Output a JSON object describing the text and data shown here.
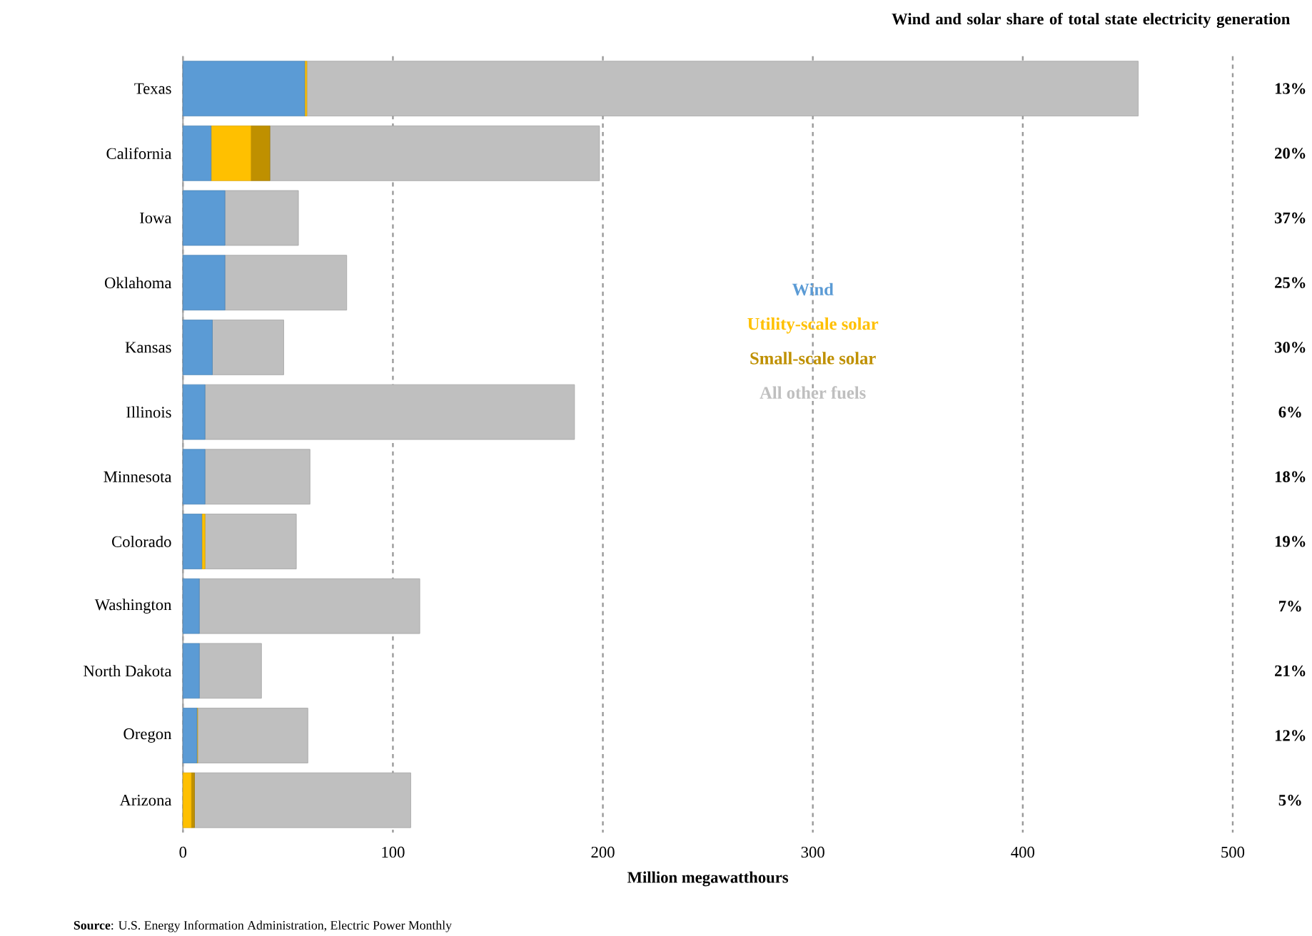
{
  "chart_data": {
    "type": "bar",
    "orientation": "horizontal",
    "stacked": true,
    "categories": [
      "Texas",
      "California",
      "Iowa",
      "Oklahoma",
      "Kansas",
      "Illinois",
      "Minnesota",
      "Colorado",
      "Washington",
      "North Dakota",
      "Oregon",
      "Arizona"
    ],
    "series": [
      {
        "name": "Wind",
        "color": "#5b9bd5",
        "values": [
          58,
          13.4,
          20,
          20,
          14,
          10.5,
          10.5,
          9,
          7.8,
          7.8,
          6.7,
          0
        ]
      },
      {
        "name": "Utility-scale solar",
        "color": "#ffc000",
        "values": [
          1,
          19,
          0,
          0,
          0,
          0,
          0,
          1.5,
          0,
          0,
          0.3,
          4
        ]
      },
      {
        "name": "Small-scale solar",
        "color": "#bf9000",
        "values": [
          0,
          9,
          0,
          0,
          0,
          0,
          0,
          0,
          0,
          0,
          0,
          1.5
        ]
      },
      {
        "name": "All other fuels",
        "color": "#bfbfbf",
        "values": [
          396,
          157,
          35,
          58,
          34,
          176,
          50,
          43.5,
          105,
          29.6,
          52.5,
          103
        ]
      }
    ],
    "xlabel": "Million megawatthours",
    "xlim": [
      0,
      500
    ],
    "xticks": [
      0,
      100,
      200,
      300,
      400,
      500
    ],
    "grid": "x",
    "legend": "right",
    "annotations": [
      "Wind and solar share of total state electricity generation",
      "13%",
      "20%",
      "37%",
      "25%",
      "30%",
      "6%",
      "18%",
      "19%",
      "7%",
      "21%",
      "12%",
      "5%",
      "**Source**: U.S. Energy Information Administration, Electric Power Monthly"
    ]
  }
}
